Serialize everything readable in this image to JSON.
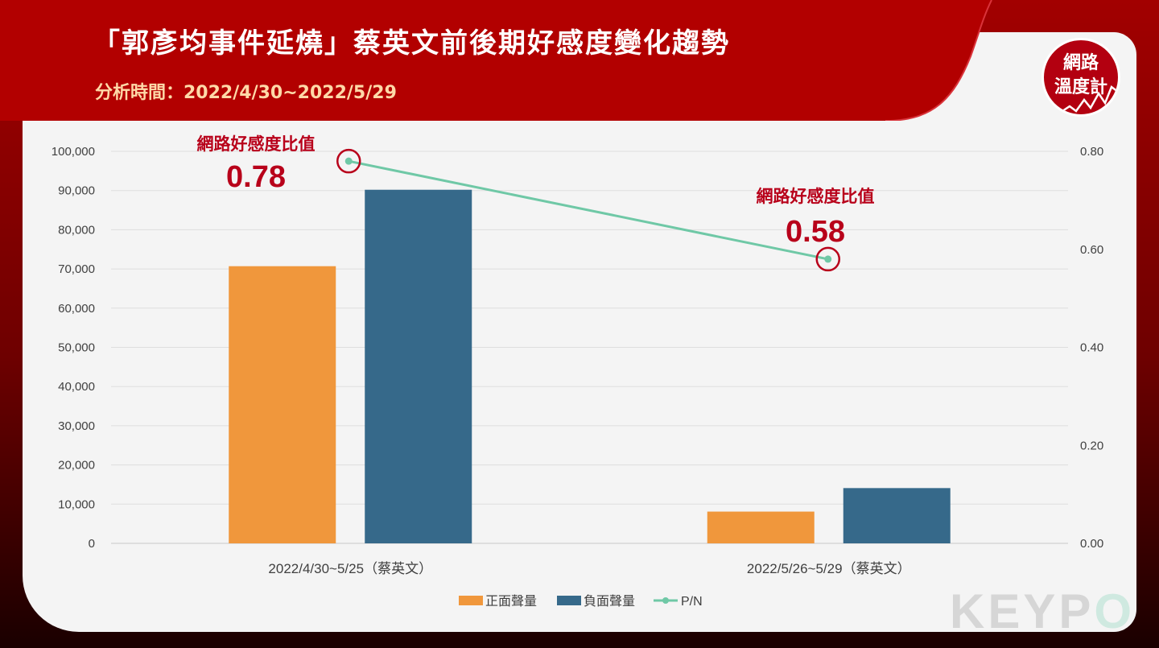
{
  "header": {
    "title": "「郭彥均事件延燒」蔡英文前後期好感度變化趨勢",
    "subtitle": "分析時間：2022/4/30~2022/5/29"
  },
  "logo": {
    "line1": "網路",
    "line2": "溫度計"
  },
  "brand": {
    "text_main": "KEYP",
    "text_o": "O"
  },
  "colors": {
    "positive": "#f0973c",
    "negative": "#36698a",
    "pn_line": "#6fc8a6",
    "annotation": "#b8001a",
    "banner": "#b20000"
  },
  "chart_data": {
    "type": "bar",
    "categories": [
      "2022/4/30~5/25（蔡英文）",
      "2022/5/26~5/29（蔡英文）"
    ],
    "series": [
      {
        "name": "正面聲量",
        "type": "bar",
        "axis": "left",
        "values": [
          70700,
          8100
        ]
      },
      {
        "name": "負面聲量",
        "type": "bar",
        "axis": "left",
        "values": [
          90200,
          14100
        ]
      },
      {
        "name": "P/N",
        "type": "line",
        "axis": "right",
        "values": [
          0.78,
          0.58
        ]
      }
    ],
    "ylim_left": [
      0,
      100000
    ],
    "yticks_left": [
      "0",
      "10,000",
      "20,000",
      "30,000",
      "40,000",
      "50,000",
      "60,000",
      "70,000",
      "80,000",
      "90,000",
      "100,000"
    ],
    "ylim_right": [
      0,
      0.8
    ],
    "yticks_right": [
      "0.00",
      "0.20",
      "0.40",
      "0.60",
      "0.80"
    ],
    "grid": true,
    "legend_position": "bottom",
    "annotations": [
      {
        "label": "網路好感度比值",
        "value": "0.78"
      },
      {
        "label": "網路好感度比值",
        "value": "0.58"
      }
    ]
  }
}
